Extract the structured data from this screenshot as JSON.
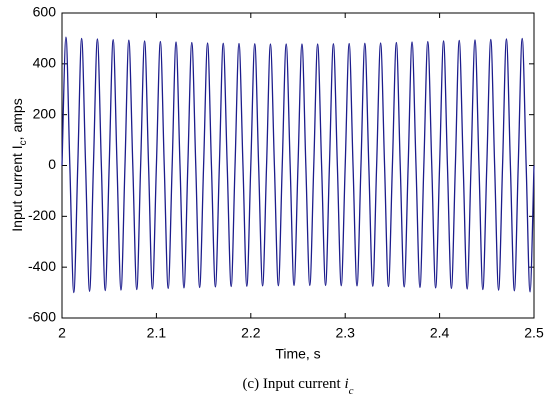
{
  "chart_data": {
    "type": "line",
    "ylabel": [
      "Input current I",
      "c",
      ", amps"
    ],
    "xlabel": "Time, s",
    "caption": [
      "(c) Input current ",
      "i",
      "c"
    ],
    "xlim": [
      2,
      2.5
    ],
    "xticks": [
      2,
      2.1,
      2.2,
      2.3,
      2.4,
      2.5
    ],
    "ylim": [
      -600,
      600
    ],
    "yticks": [
      -600,
      -400,
      -200,
      0,
      200,
      400,
      600
    ],
    "series": [
      {
        "color": "#1c1c8c",
        "x": [
          2,
          2.0042,
          2.0083,
          2.0125,
          2.0167,
          2.0208,
          2.025,
          2.0292,
          2.0333,
          2.0375,
          2.0417,
          2.0458,
          2.05,
          2.0542,
          2.0583,
          2.0625,
          2.0667,
          2.0708,
          2.075,
          2.0792,
          2.0833,
          2.0875,
          2.0917,
          2.0958,
          2.1,
          2.1042,
          2.1083,
          2.1125,
          2.1167,
          2.1208,
          2.125,
          2.1292,
          2.1333,
          2.1375,
          2.1417,
          2.1458,
          2.15,
          2.1542,
          2.1583,
          2.1625,
          2.1667,
          2.1708,
          2.175,
          2.1792,
          2.1833,
          2.1875,
          2.1917,
          2.1958,
          2.2,
          2.2042,
          2.2083,
          2.2125,
          2.2167,
          2.2208,
          2.225,
          2.2292,
          2.2333,
          2.2375,
          2.2417,
          2.2458,
          2.25,
          2.2542,
          2.2583,
          2.2625,
          2.2667,
          2.2708,
          2.275,
          2.2792,
          2.2833,
          2.2875,
          2.2917,
          2.2958,
          2.3,
          2.3042,
          2.3083,
          2.3125,
          2.3167,
          2.3208,
          2.325,
          2.3292,
          2.3333,
          2.3375,
          2.3417,
          2.3458,
          2.35,
          2.3542,
          2.3583,
          2.3625,
          2.3667,
          2.3708,
          2.375,
          2.3792,
          2.3833,
          2.3875,
          2.3917,
          2.3958,
          2.4,
          2.4042,
          2.4083,
          2.4125,
          2.4167,
          2.4208,
          2.425,
          2.4292,
          2.4333,
          2.4375,
          2.4417,
          2.4458,
          2.45,
          2.4542,
          2.4583,
          2.4625,
          2.4667,
          2.4708,
          2.475,
          2.4792,
          2.4833,
          2.4875,
          2.4917,
          2.4958,
          2.5
        ],
        "values": [
          0,
          505,
          0,
          -500,
          0,
          500,
          0,
          -495,
          0,
          498,
          0,
          -492,
          0,
          495,
          0,
          -490,
          0,
          493,
          0,
          -488,
          0,
          490,
          0,
          -486,
          0,
          488,
          0,
          -484,
          0,
          486,
          0,
          -482,
          0,
          484,
          0,
          -480,
          0,
          482,
          0,
          -478,
          0,
          481,
          0,
          -476,
          0,
          480,
          0,
          -475,
          0,
          479,
          0,
          -474,
          0,
          478,
          0,
          -473,
          0,
          478,
          0,
          -472,
          0,
          478,
          0,
          -472,
          0,
          478,
          0,
          -472,
          0,
          479,
          0,
          -473,
          0,
          480,
          0,
          -474,
          0,
          481,
          0,
          -475,
          0,
          482,
          0,
          -476,
          0,
          484,
          0,
          -478,
          0,
          486,
          0,
          -480,
          0,
          488,
          0,
          -482,
          0,
          490,
          0,
          -484,
          0,
          492,
          0,
          -486,
          0,
          494,
          0,
          -488,
          0,
          496,
          0,
          -490,
          0,
          498,
          0,
          -493,
          0,
          500,
          0,
          -497,
          0
        ]
      }
    ]
  }
}
